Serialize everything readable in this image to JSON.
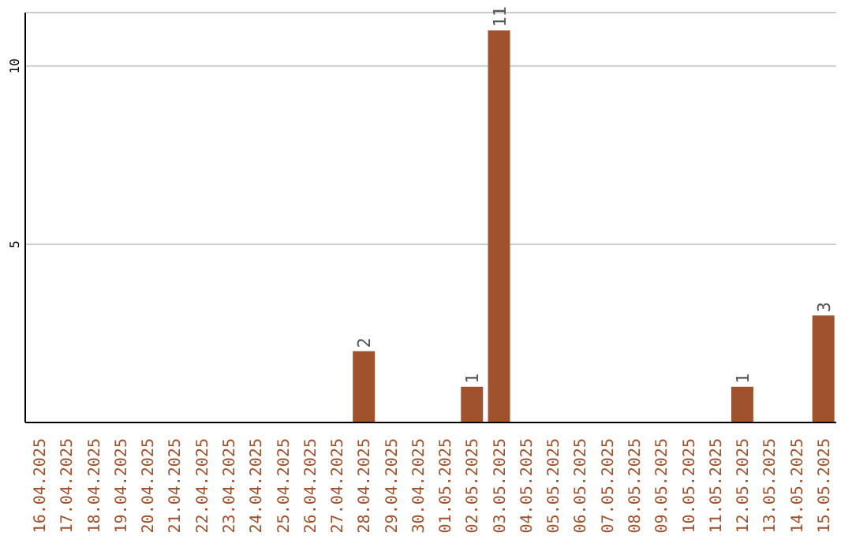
{
  "chart_data": {
    "type": "bar",
    "categories": [
      "16.04.2025",
      "17.04.2025",
      "18.04.2025",
      "19.04.2025",
      "20.04.2025",
      "21.04.2025",
      "22.04.2025",
      "23.04.2025",
      "24.04.2025",
      "25.04.2025",
      "26.04.2025",
      "27.04.2025",
      "28.04.2025",
      "29.04.2025",
      "30.04.2025",
      "01.05.2025",
      "02.05.2025",
      "03.05.2025",
      "04.05.2025",
      "05.05.2025",
      "06.05.2025",
      "07.05.2025",
      "08.05.2025",
      "09.05.2025",
      "10.05.2025",
      "11.05.2025",
      "12.05.2025",
      "13.05.2025",
      "14.05.2025",
      "15.05.2025"
    ],
    "values": [
      0,
      0,
      0,
      0,
      0,
      0,
      0,
      0,
      0,
      0,
      0,
      0,
      2,
      0,
      0,
      0,
      1,
      11,
      0,
      0,
      0,
      0,
      0,
      0,
      0,
      0,
      1,
      0,
      0,
      3
    ],
    "value_labels": [
      null,
      null,
      null,
      null,
      null,
      null,
      null,
      null,
      null,
      null,
      null,
      null,
      "2",
      null,
      null,
      null,
      "1",
      "11",
      null,
      null,
      null,
      null,
      null,
      null,
      null,
      null,
      "1",
      null,
      null,
      "3"
    ],
    "color": "#a0522d",
    "ylim": [
      0,
      11.5
    ],
    "yticks": [
      5,
      10
    ],
    "grid": "y"
  }
}
